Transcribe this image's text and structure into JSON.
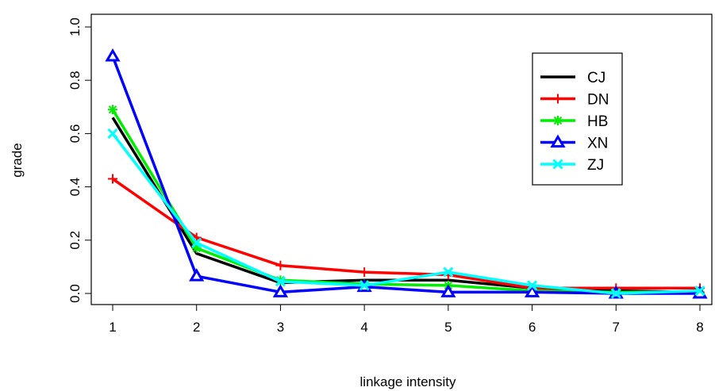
{
  "chart_data": {
    "type": "line",
    "title": "",
    "xlabel": "linkage intensity",
    "ylabel": "grade",
    "x": [
      1,
      2,
      3,
      4,
      5,
      6,
      7,
      8
    ],
    "xlim": [
      1,
      8
    ],
    "ylim": [
      0,
      1
    ],
    "x_ticks": [
      "1",
      "2",
      "3",
      "4",
      "5",
      "6",
      "7",
      "8"
    ],
    "y_ticks": [
      "0.0",
      "0.2",
      "0.4",
      "0.6",
      "0.8",
      "1.0"
    ],
    "grid": false,
    "legend_position": "top-right",
    "series": [
      {
        "name": "CJ",
        "color": "#000000",
        "marker": "none",
        "values": [
          0.66,
          0.15,
          0.04,
          0.05,
          0.05,
          0.02,
          0.01,
          0.005
        ]
      },
      {
        "name": "DN",
        "color": "#ff0000",
        "marker": "plus",
        "values": [
          0.43,
          0.21,
          0.105,
          0.08,
          0.07,
          0.02,
          0.02,
          0.02
        ]
      },
      {
        "name": "HB",
        "color": "#00ee00",
        "marker": "asterisk",
        "values": [
          0.69,
          0.17,
          0.05,
          0.035,
          0.03,
          0.01,
          0.005,
          0.005
        ]
      },
      {
        "name": "XN",
        "color": "#0000ff",
        "marker": "triangle",
        "values": [
          0.89,
          0.065,
          0.005,
          0.025,
          0.005,
          0.005,
          0.0,
          0.0
        ]
      },
      {
        "name": "ZJ",
        "color": "#00ffff",
        "marker": "cross",
        "values": [
          0.6,
          0.19,
          0.045,
          0.03,
          0.08,
          0.03,
          0.0,
          0.01
        ]
      }
    ]
  }
}
